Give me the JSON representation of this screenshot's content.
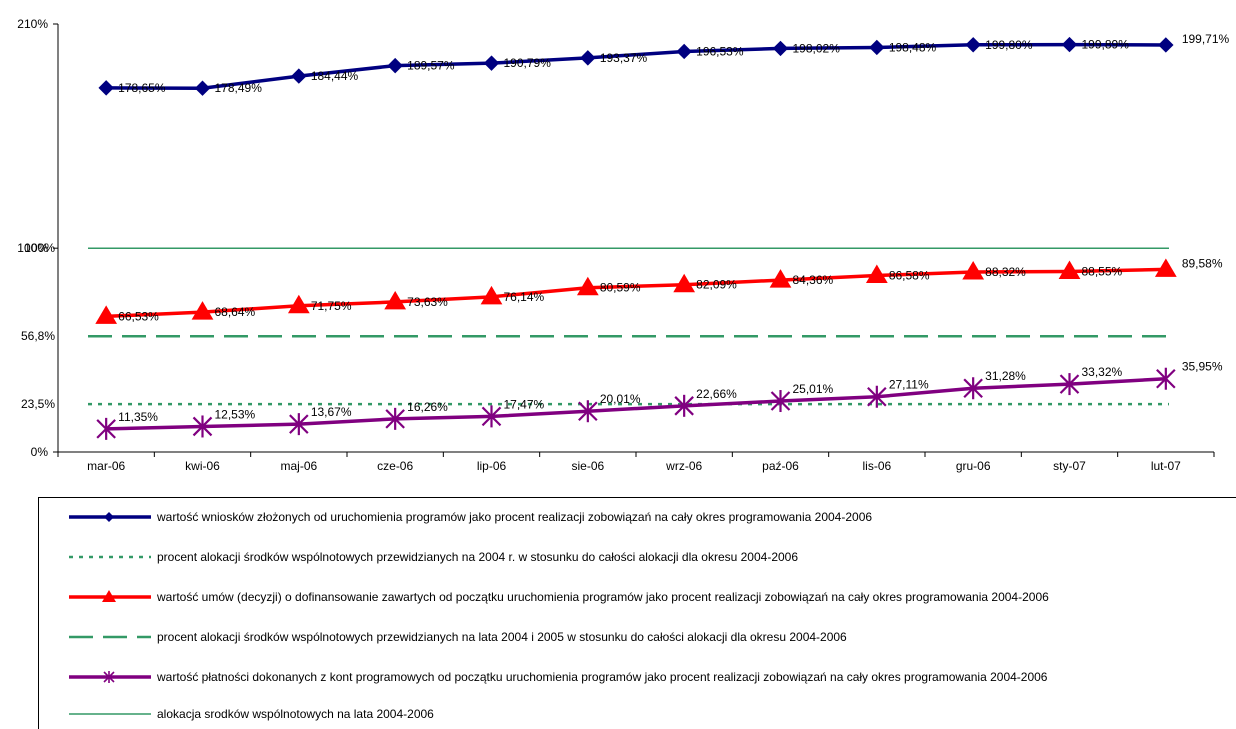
{
  "chart_data": {
    "type": "line",
    "categories": [
      "mar-06",
      "kwi-06",
      "maj-06",
      "cze-06",
      "lip-06",
      "sie-06",
      "wrz-06",
      "paź-06",
      "lis-06",
      "gru-06",
      "sty-07",
      "lut-07"
    ],
    "y_ticks": [
      "0%",
      "100%",
      "210%"
    ],
    "ylim": [
      0,
      210
    ],
    "grid": false,
    "legend_position": "bottom",
    "series": [
      {
        "key": "wnioski",
        "name": "wartość  wniosków złożonych od uruchomienia programów jako procent realizacji zobowiązań na cały okres programowania 2004-2006",
        "color": "#000080",
        "marker": "diamond",
        "dash": "solid",
        "values": [
          178.65,
          178.49,
          184.44,
          189.57,
          190.79,
          193.37,
          196.53,
          198.02,
          198.48,
          199.8,
          199.89,
          199.71
        ],
        "labels": [
          "178,65%",
          "178,49%",
          "184,44%",
          "189,57%",
          "190,79%",
          "193,37%",
          "196,53%",
          "198,02%",
          "198,48%",
          "199,80%",
          "199,89%",
          "199,71%"
        ]
      },
      {
        "key": "alok2004",
        "name": "procent alokacji środków wspólnotowych przewidzianych na 2004 r. w stosunku do całości alokacji dla okresu 2004-2006",
        "color": "#339966",
        "marker": "none",
        "dash": "dotted",
        "constant": 23.5,
        "ref_label": "23,5%"
      },
      {
        "key": "umowy",
        "name": "wartość  umów (decyzji) o dofinansowanie zawartych od początku uruchomienia programów jako procent realizacji zobowiązań na cały okres programowania 2004-2006",
        "color": "#ff0000",
        "marker": "triangle",
        "dash": "solid",
        "values": [
          66.53,
          68.64,
          71.75,
          73.63,
          76.14,
          80.59,
          82.09,
          84.36,
          86.58,
          88.32,
          88.55,
          89.58
        ],
        "labels": [
          "66,53%",
          "68,64%",
          "71,75%",
          "73,63%",
          "76,14%",
          "80,59%",
          "82,09%",
          "84,36%",
          "86,58%",
          "88,32%",
          "88,55%",
          "89,58%"
        ]
      },
      {
        "key": "alok20042005",
        "name": "procent alokacji środków wspólnotowych przewidzianych na lata 2004 i 2005 w stosunku do całości alokacji dla okresu 2004-2006",
        "color": "#339966",
        "marker": "none",
        "dash": "dashed",
        "constant": 56.8,
        "ref_label": "56,8%"
      },
      {
        "key": "platnosci",
        "name": "wartość  płatności dokonanych z kont programowych od początku uruchomienia programów jako procent realizacji zobowiązań na cały okres programowania 2004-2006",
        "color": "#800080",
        "marker": "star",
        "dash": "solid",
        "values": [
          11.35,
          12.53,
          13.67,
          16.26,
          17.47,
          20.01,
          22.66,
          25.01,
          27.11,
          31.28,
          33.32,
          35.95
        ],
        "labels": [
          "11,35%",
          "12,53%",
          "13,67%",
          "16,26%",
          "17,47%",
          "20,01%",
          "22,66%",
          "25,01%",
          "27,11%",
          "31,28%",
          "33,32%",
          "35,95%"
        ]
      },
      {
        "key": "alok20042006",
        "name": "alokacja srodków wspólnotowych na lata 2004-2006",
        "color": "#339966",
        "marker": "none",
        "dash": "thin",
        "constant": 100,
        "ref_label": "100%"
      }
    ]
  }
}
